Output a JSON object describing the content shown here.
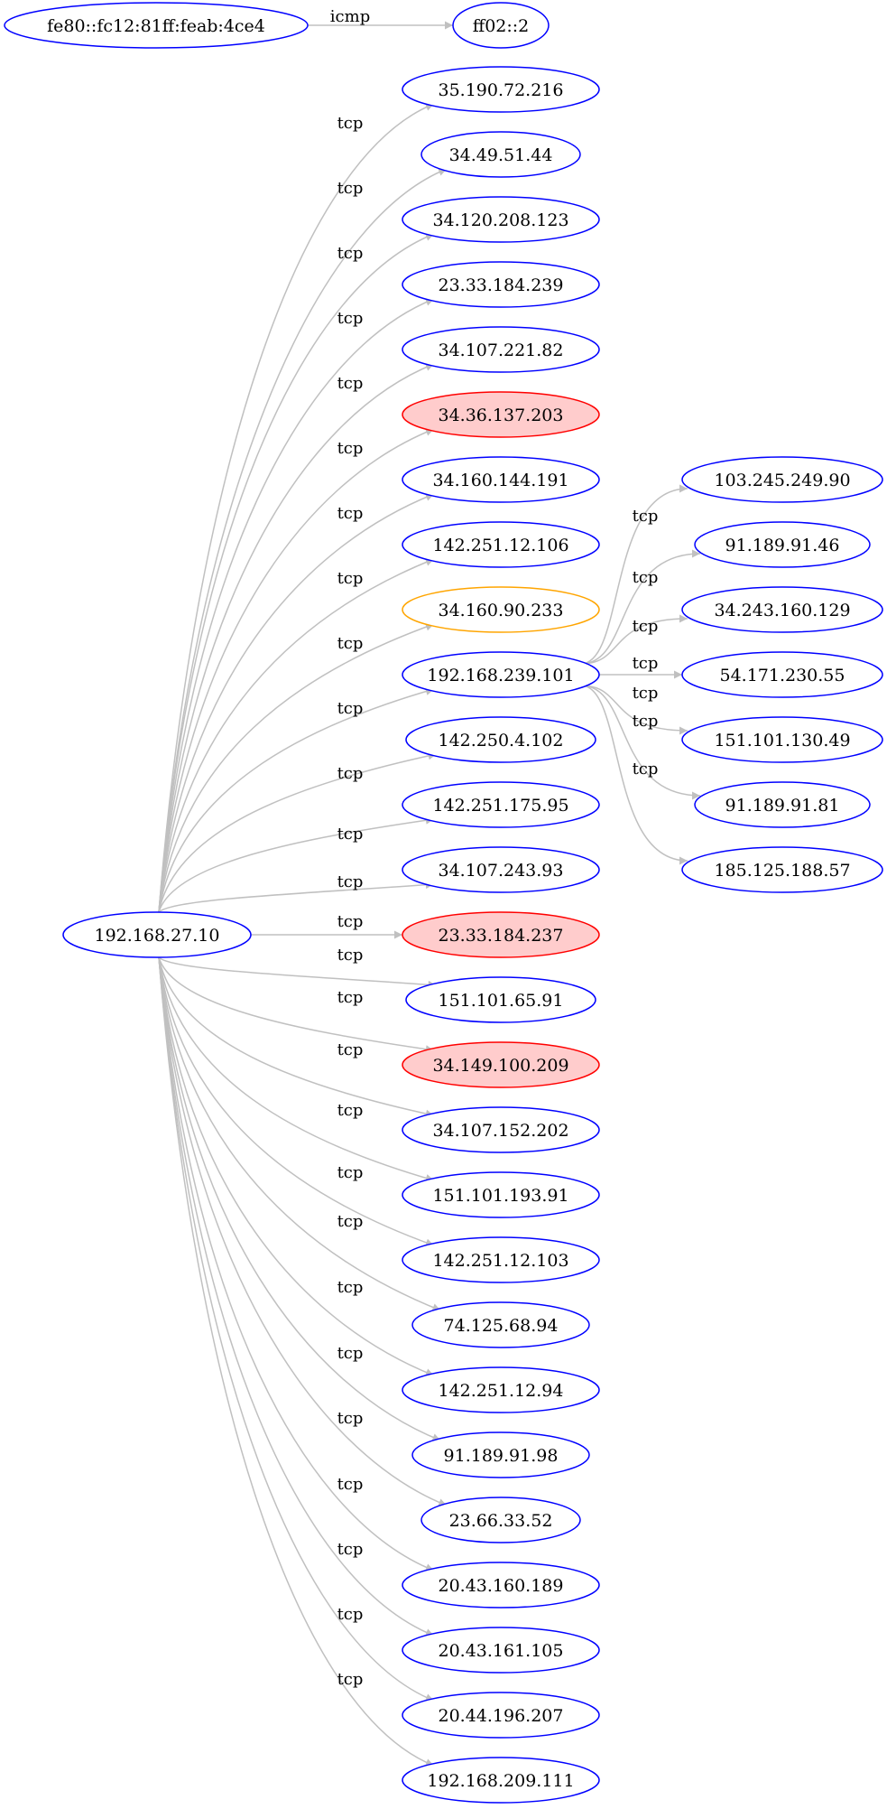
{
  "colors": {
    "normal_stroke": "#0000ff",
    "alert_stroke": "#ff0000",
    "alert_fill": "#ffcccc",
    "warn_stroke": "#ffa500",
    "edge": "#c0c0c0"
  },
  "nodes": [
    {
      "id": "n_fe80",
      "label": "fe80::fc12:81ff:feab:4ce4",
      "status": "normal"
    },
    {
      "id": "n_ff02",
      "label": "ff02::2",
      "status": "normal"
    },
    {
      "id": "n_src",
      "label": "192.168.27.10",
      "status": "normal"
    },
    {
      "id": "n_1",
      "label": "35.190.72.216",
      "status": "normal"
    },
    {
      "id": "n_2",
      "label": "34.49.51.44",
      "status": "normal"
    },
    {
      "id": "n_3",
      "label": "34.120.208.123",
      "status": "normal"
    },
    {
      "id": "n_4",
      "label": "23.33.184.239",
      "status": "normal"
    },
    {
      "id": "n_5",
      "label": "34.107.221.82",
      "status": "normal"
    },
    {
      "id": "n_6",
      "label": "34.36.137.203",
      "status": "alert"
    },
    {
      "id": "n_7",
      "label": "34.160.144.191",
      "status": "normal"
    },
    {
      "id": "n_8",
      "label": "142.251.12.106",
      "status": "normal"
    },
    {
      "id": "n_9",
      "label": "34.160.90.233",
      "status": "warn"
    },
    {
      "id": "n_hub",
      "label": "192.168.239.101",
      "status": "normal"
    },
    {
      "id": "n_11",
      "label": "142.250.4.102",
      "status": "normal"
    },
    {
      "id": "n_12",
      "label": "142.251.175.95",
      "status": "normal"
    },
    {
      "id": "n_13",
      "label": "34.107.243.93",
      "status": "normal"
    },
    {
      "id": "n_14",
      "label": "23.33.184.237",
      "status": "alert"
    },
    {
      "id": "n_15",
      "label": "151.101.65.91",
      "status": "normal"
    },
    {
      "id": "n_16",
      "label": "34.149.100.209",
      "status": "alert"
    },
    {
      "id": "n_17",
      "label": "34.107.152.202",
      "status": "normal"
    },
    {
      "id": "n_18",
      "label": "151.101.193.91",
      "status": "normal"
    },
    {
      "id": "n_19",
      "label": "142.251.12.103",
      "status": "normal"
    },
    {
      "id": "n_20",
      "label": "74.125.68.94",
      "status": "normal"
    },
    {
      "id": "n_21",
      "label": "142.251.12.94",
      "status": "normal"
    },
    {
      "id": "n_22",
      "label": "91.189.91.98",
      "status": "normal"
    },
    {
      "id": "n_23",
      "label": "23.66.33.52",
      "status": "normal"
    },
    {
      "id": "n_24",
      "label": "20.43.160.189",
      "status": "normal"
    },
    {
      "id": "n_25",
      "label": "20.43.161.105",
      "status": "normal"
    },
    {
      "id": "n_26",
      "label": "20.44.196.207",
      "status": "normal"
    },
    {
      "id": "n_27",
      "label": "192.168.209.111",
      "status": "normal"
    },
    {
      "id": "n_r1",
      "label": "103.245.249.90",
      "status": "normal"
    },
    {
      "id": "n_r2",
      "label": "91.189.91.46",
      "status": "normal"
    },
    {
      "id": "n_r3",
      "label": "34.243.160.129",
      "status": "normal"
    },
    {
      "id": "n_r4",
      "label": "54.171.230.55",
      "status": "normal"
    },
    {
      "id": "n_r5",
      "label": "151.101.130.49",
      "status": "normal"
    },
    {
      "id": "n_r6",
      "label": "91.189.91.81",
      "status": "normal"
    },
    {
      "id": "n_r7",
      "label": "185.125.188.57",
      "status": "normal"
    }
  ],
  "edges": [
    {
      "from": "n_fe80",
      "to": "n_ff02",
      "label": "icmp"
    },
    {
      "from": "n_src",
      "to": "n_1",
      "label": "tcp"
    },
    {
      "from": "n_src",
      "to": "n_2",
      "label": "tcp"
    },
    {
      "from": "n_src",
      "to": "n_3",
      "label": "tcp"
    },
    {
      "from": "n_src",
      "to": "n_4",
      "label": "tcp"
    },
    {
      "from": "n_src",
      "to": "n_5",
      "label": "tcp"
    },
    {
      "from": "n_src",
      "to": "n_6",
      "label": "tcp"
    },
    {
      "from": "n_src",
      "to": "n_7",
      "label": "tcp"
    },
    {
      "from": "n_src",
      "to": "n_8",
      "label": "tcp"
    },
    {
      "from": "n_src",
      "to": "n_9",
      "label": "tcp"
    },
    {
      "from": "n_src",
      "to": "n_hub",
      "label": "tcp"
    },
    {
      "from": "n_src",
      "to": "n_11",
      "label": "tcp"
    },
    {
      "from": "n_src",
      "to": "n_12",
      "label": "tcp"
    },
    {
      "from": "n_src",
      "to": "n_13",
      "label": "tcp"
    },
    {
      "from": "n_src",
      "to": "n_14",
      "label": "tcp"
    },
    {
      "from": "n_src",
      "to": "n_15",
      "label": "tcp"
    },
    {
      "from": "n_src",
      "to": "n_16",
      "label": "tcp"
    },
    {
      "from": "n_src",
      "to": "n_17",
      "label": "tcp"
    },
    {
      "from": "n_src",
      "to": "n_18",
      "label": "tcp"
    },
    {
      "from": "n_src",
      "to": "n_19",
      "label": "tcp"
    },
    {
      "from": "n_src",
      "to": "n_20",
      "label": "tcp"
    },
    {
      "from": "n_src",
      "to": "n_21",
      "label": "tcp"
    },
    {
      "from": "n_src",
      "to": "n_22",
      "label": "tcp"
    },
    {
      "from": "n_src",
      "to": "n_23",
      "label": "tcp"
    },
    {
      "from": "n_src",
      "to": "n_24",
      "label": "tcp"
    },
    {
      "from": "n_src",
      "to": "n_25",
      "label": "tcp"
    },
    {
      "from": "n_src",
      "to": "n_26",
      "label": "tcp"
    },
    {
      "from": "n_src",
      "to": "n_27",
      "label": "tcp"
    },
    {
      "from": "n_hub",
      "to": "n_r1",
      "label": "tcp"
    },
    {
      "from": "n_hub",
      "to": "n_r2",
      "label": "tcp"
    },
    {
      "from": "n_hub",
      "to": "n_r3",
      "label": "tcp"
    },
    {
      "from": "n_hub",
      "to": "n_r4",
      "label": "tcp"
    },
    {
      "from": "n_hub",
      "to": "n_r5",
      "label": "tcp"
    },
    {
      "from": "n_hub",
      "to": "n_r6",
      "label": "tcp"
    },
    {
      "from": "n_hub",
      "to": "n_r7",
      "label": "tcp"
    }
  ]
}
